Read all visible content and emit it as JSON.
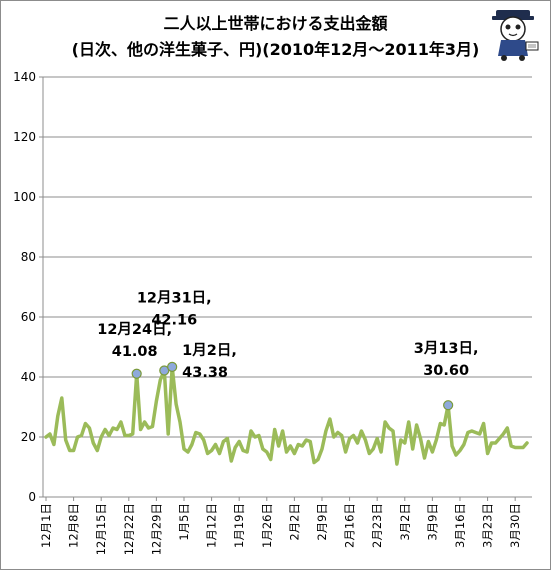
{
  "chart_data": {
    "type": "line",
    "title_line1": "二人以上世帯における支出金額",
    "title_line2": "(日次、他の洋生菓子、円)(2010年12月～2011年3月)",
    "ylim": [
      0,
      140
    ],
    "yticks": [
      0,
      20,
      40,
      60,
      80,
      100,
      120,
      140
    ],
    "grid": true,
    "line_color": "#9bbb59",
    "marker_color": "#8ea9db",
    "xticks": [
      {
        "label": "12月1日",
        "day": 0
      },
      {
        "label": "12月8日",
        "day": 7
      },
      {
        "label": "12月15日",
        "day": 14
      },
      {
        "label": "12月22日",
        "day": 21
      },
      {
        "label": "12月29日",
        "day": 28
      },
      {
        "label": "1月5日",
        "day": 35
      },
      {
        "label": "1月12日",
        "day": 42
      },
      {
        "label": "1月19日",
        "day": 49
      },
      {
        "label": "1月26日",
        "day": 56
      },
      {
        "label": "2月2日",
        "day": 63
      },
      {
        "label": "2月9日",
        "day": 70
      },
      {
        "label": "2月16日",
        "day": 77
      },
      {
        "label": "2月23日",
        "day": 84
      },
      {
        "label": "3月2日",
        "day": 91
      },
      {
        "label": "3月9日",
        "day": 98
      },
      {
        "label": "3月16日",
        "day": 105
      },
      {
        "label": "3月23日",
        "day": 112
      },
      {
        "label": "3月30日",
        "day": 119
      }
    ],
    "values": [
      20,
      21,
      17.5,
      27,
      33,
      19,
      15.5,
      15.5,
      20,
      20.5,
      24.5,
      23,
      18,
      15.5,
      20,
      22.5,
      20.5,
      23,
      22.5,
      25,
      20.5,
      20.5,
      21,
      41.08,
      22.5,
      25,
      23,
      23.5,
      32,
      39,
      42.16,
      21,
      43.38,
      31,
      25,
      16,
      15,
      17.5,
      21.5,
      21,
      19,
      14.5,
      15.5,
      17.5,
      14.5,
      18.5,
      19.5,
      12,
      16.5,
      18.5,
      15.5,
      15,
      22,
      20,
      20.5,
      16,
      15,
      12.5,
      22.5,
      17,
      22,
      15,
      17,
      14.5,
      17.5,
      17,
      19,
      18.5,
      11.5,
      12.5,
      16,
      22,
      26,
      20,
      21.5,
      20.5,
      15,
      19.5,
      20.5,
      18,
      22,
      19,
      14.5,
      16,
      19.5,
      15,
      25,
      23,
      22,
      11,
      19,
      18,
      25,
      16,
      24,
      19.5,
      13,
      18.5,
      15,
      19,
      24.5,
      24,
      30.6,
      17,
      14,
      15.5,
      17.5,
      21.5,
      22,
      21.5,
      21,
      24.5,
      14.5,
      18,
      18,
      19.5,
      21,
      23,
      17,
      16.5,
      16.5,
      16.5,
      18
    ],
    "annotations": [
      {
        "day": 23,
        "lines": [
          "12月24日,",
          "41.08"
        ]
      },
      {
        "day": 30,
        "lines": [
          "12月31日,",
          "42.16"
        ]
      },
      {
        "day": 32,
        "lines": [
          "1月2日,",
          "43.38"
        ]
      },
      {
        "day": 102,
        "lines": [
          "3月13日,",
          "30.60"
        ]
      }
    ]
  },
  "mascot": {
    "name": "cat-mascot-icon"
  }
}
